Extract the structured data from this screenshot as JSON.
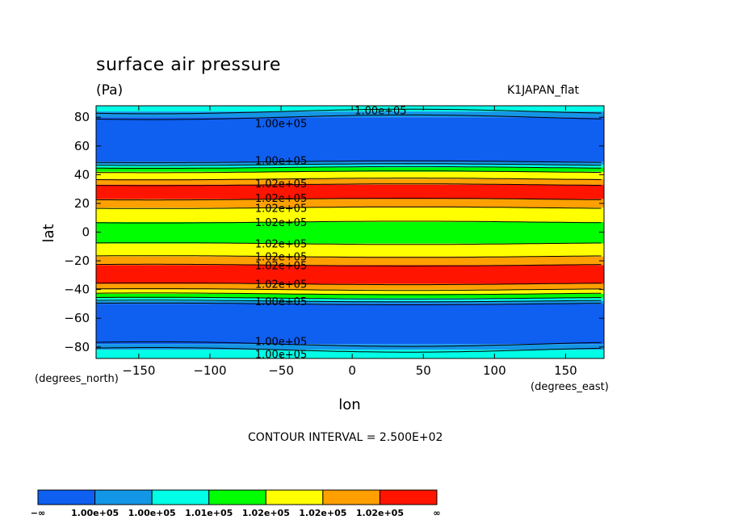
{
  "title": "surface air pressure",
  "units": "(Pa)",
  "run_name": "K1JAPAN_flat",
  "contour_interval": "CONTOUR INTERVAL = 2.500E+02",
  "chart_data": {
    "type": "heatmap",
    "title": "surface air pressure",
    "subtitle": "(Pa)",
    "xlabel": "lon",
    "ylabel": "lat",
    "x_units": "(degrees_east)",
    "y_units": "(degrees_north)",
    "xlim": [
      -180,
      177
    ],
    "ylim": [
      -88,
      88
    ],
    "x_ticks": [
      -150,
      -100,
      -50,
      0,
      50,
      100,
      150
    ],
    "x_tick_labels": [
      "−150",
      "−100",
      "−50",
      "0",
      "50",
      "100",
      "150"
    ],
    "y_ticks": [
      -80,
      -60,
      -40,
      -20,
      0,
      20,
      40,
      60,
      80
    ],
    "y_tick_labels": [
      "−80",
      "−60",
      "−40",
      "−20",
      "0",
      "20",
      "40",
      "60",
      "80"
    ],
    "colorbar_labels": [
      "−∞",
      "1.00e+05",
      "1.00e+05",
      "1.01e+05",
      "1.02e+05",
      "1.02e+05",
      "1.02e+05",
      "∞"
    ],
    "colors": [
      "#0f5ff0",
      "#1496e6",
      "#00ffe6",
      "#00ff00",
      "#ffff00",
      "#ffa000",
      "#ff1400"
    ],
    "latitude_bands": [
      {
        "lat": [
          84,
          88
        ],
        "level": 2
      },
      {
        "lat": [
          80,
          84
        ],
        "level": 1
      },
      {
        "lat": [
          49,
          80
        ],
        "level": 0
      },
      {
        "lat": [
          47,
          49
        ],
        "level": 1
      },
      {
        "lat": [
          45,
          47
        ],
        "level": 2
      },
      {
        "lat": [
          42,
          45
        ],
        "level": 3
      },
      {
        "lat": [
          37,
          42
        ],
        "level": 4
      },
      {
        "lat": [
          33,
          37
        ],
        "level": 5
      },
      {
        "lat": [
          23,
          33
        ],
        "level": 6
      },
      {
        "lat": [
          17,
          23
        ],
        "level": 5
      },
      {
        "lat": [
          7,
          17
        ],
        "level": 4
      },
      {
        "lat": [
          -8,
          7
        ],
        "level": 3
      },
      {
        "lat": [
          -17,
          -8
        ],
        "level": 4
      },
      {
        "lat": [
          -23,
          -17
        ],
        "level": 5
      },
      {
        "lat": [
          -36,
          -23
        ],
        "level": 6
      },
      {
        "lat": [
          -40,
          -36
        ],
        "level": 5
      },
      {
        "lat": [
          -43,
          -40
        ],
        "level": 4
      },
      {
        "lat": [
          -46,
          -43
        ],
        "level": 3
      },
      {
        "lat": [
          -48,
          -46
        ],
        "level": 2
      },
      {
        "lat": [
          -50,
          -48
        ],
        "level": 1
      },
      {
        "lat": [
          -78,
          -50
        ],
        "level": 0
      },
      {
        "lat": [
          -82,
          -78
        ],
        "level": 1
      },
      {
        "lat": [
          -88,
          -82
        ],
        "level": 2
      }
    ],
    "contour_labels": [
      {
        "text": "1.00e+05",
        "lon": -50,
        "lat": 76
      },
      {
        "text": "1.00e+05",
        "lon": 20,
        "lat": 85
      },
      {
        "text": "1.00e+05",
        "lon": -50,
        "lat": 50
      },
      {
        "text": "1.02e+05",
        "lon": -50,
        "lat": 34
      },
      {
        "text": "1.02e+05",
        "lon": -50,
        "lat": 24
      },
      {
        "text": "1.02e+05",
        "lon": -50,
        "lat": 17
      },
      {
        "text": "1.02e+05",
        "lon": -50,
        "lat": 7
      },
      {
        "text": "1.02e+05",
        "lon": -50,
        "lat": -8
      },
      {
        "text": "1.02e+05",
        "lon": -50,
        "lat": -17
      },
      {
        "text": "1.02e+05",
        "lon": -50,
        "lat": -23
      },
      {
        "text": "1.02e+05",
        "lon": -50,
        "lat": -36
      },
      {
        "text": "1.00e+05",
        "lon": -50,
        "lat": -48
      },
      {
        "text": "1.00e+05",
        "lon": -50,
        "lat": -76
      },
      {
        "text": "1.00e+05",
        "lon": -50,
        "lat": -85
      }
    ]
  }
}
